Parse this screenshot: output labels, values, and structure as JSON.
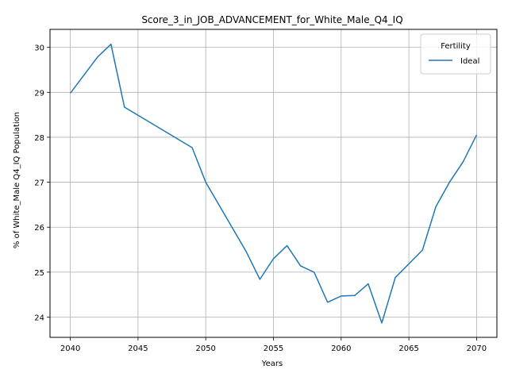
{
  "chart_data": {
    "type": "line",
    "title": "Score_3_in_JOB_ADVANCEMENT_for_White_Male_Q4_IQ",
    "xlabel": "Years",
    "ylabel": "% of White_Male Q4_IQ Population",
    "xlim": [
      2038.5,
      2071.5
    ],
    "ylim": [
      23.55,
      30.4
    ],
    "x_ticks": [
      2040,
      2045,
      2050,
      2055,
      2060,
      2065,
      2070
    ],
    "y_ticks": [
      24,
      25,
      26,
      27,
      28,
      29,
      30
    ],
    "grid": true,
    "legend": {
      "title": "Fertility",
      "position": "top-right"
    },
    "series": [
      {
        "name": "Ideal",
        "color": "#1f77b4",
        "x": [
          2040,
          2042,
          2043,
          2044,
          2049,
          2050,
          2053,
          2054,
          2055,
          2056,
          2057,
          2058,
          2059,
          2060,
          2061,
          2062,
          2063,
          2064,
          2066,
          2067,
          2068,
          2069,
          2070
        ],
        "y": [
          28.98,
          29.78,
          30.07,
          28.67,
          27.77,
          27.0,
          25.45,
          24.84,
          25.3,
          25.59,
          25.14,
          25.0,
          24.33,
          24.47,
          24.48,
          24.74,
          23.87,
          24.88,
          25.49,
          26.46,
          27.0,
          27.45,
          28.05
        ]
      }
    ]
  }
}
